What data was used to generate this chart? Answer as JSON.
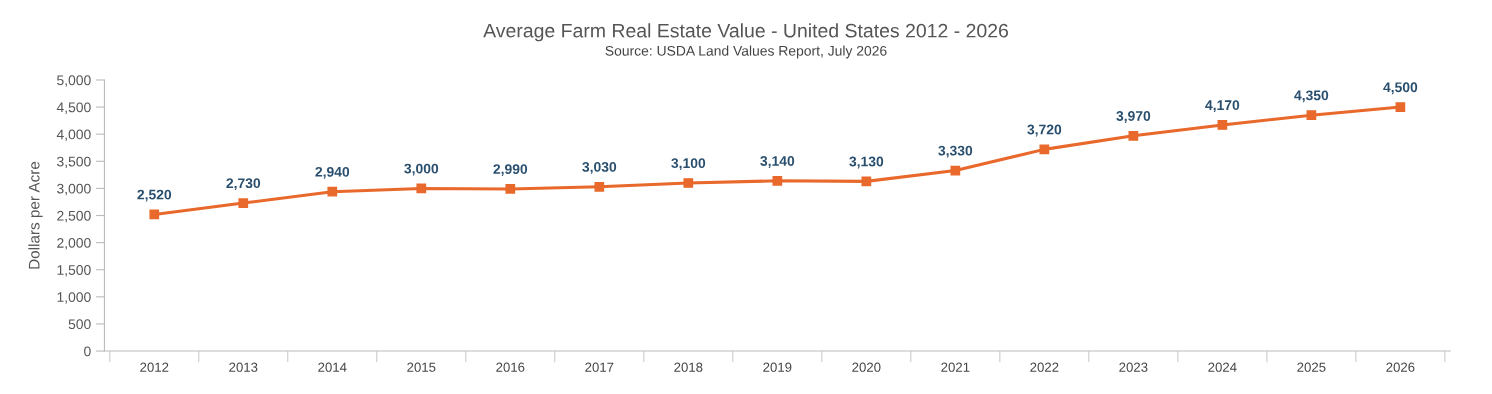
{
  "chart_data": {
    "type": "line",
    "title": "Average Farm Real Estate Value - United States 2012 - 2026",
    "subtitle": "Source: USDA Land Values Report, July 2026",
    "ylabel": "Dollars per Acre",
    "categories": [
      "2012",
      "2013",
      "2014",
      "2015",
      "2016",
      "2017",
      "2018",
      "2019",
      "2020",
      "2021",
      "2022",
      "2023",
      "2024",
      "2025",
      "2026"
    ],
    "series": [
      {
        "color": "#e8692b",
        "values": [
          2520,
          2730,
          2940,
          3000,
          2990,
          3030,
          3100,
          3140,
          3130,
          3330,
          3720,
          3970,
          4170,
          4350,
          4500
        ],
        "value_labels": [
          "2,520",
          "2,730",
          "2,940",
          "3,000",
          "2,990",
          "3,030",
          "3,100",
          "3,140",
          "3,130",
          "3,330",
          "3,720",
          "3,970",
          "4,170",
          "4,350",
          "4,500"
        ]
      }
    ],
    "ylim": [
      0,
      5000
    ],
    "yticks": [
      {
        "value": 0,
        "label": "0"
      },
      {
        "value": 500,
        "label": "500"
      },
      {
        "value": 1000,
        "label": "1,000"
      },
      {
        "value": 1500,
        "label": "1,500"
      },
      {
        "value": 2000,
        "label": "2,000"
      },
      {
        "value": 2500,
        "label": "2,500"
      },
      {
        "value": 3000,
        "label": "3,000"
      },
      {
        "value": 3500,
        "label": "3,500"
      },
      {
        "value": 4000,
        "label": "4,000"
      },
      {
        "value": 4500,
        "label": "4,500"
      },
      {
        "value": 5000,
        "label": "5,000"
      }
    ],
    "marker": "square",
    "line_style": "solid",
    "grid": false,
    "legend": false
  }
}
